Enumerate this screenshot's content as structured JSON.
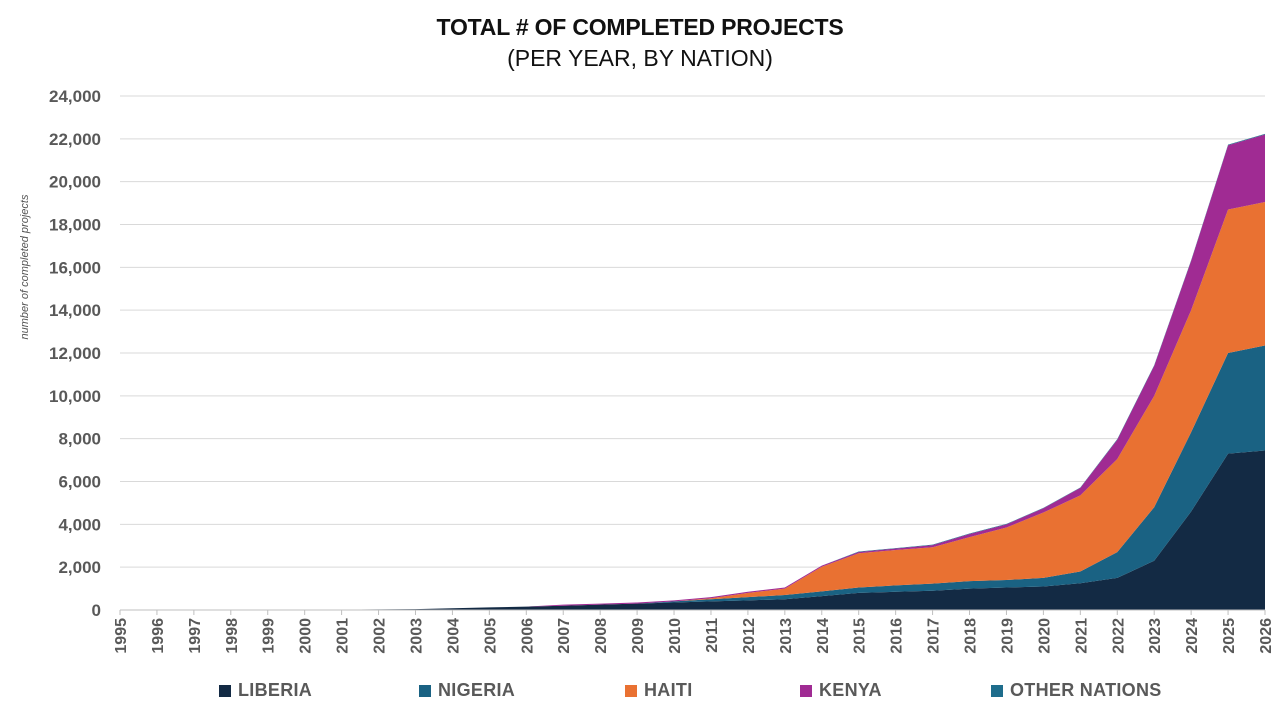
{
  "chart_data": {
    "type": "area",
    "stacked": true,
    "title": "TOTAL # OF COMPLETED PROJECTS",
    "subtitle": "(PER YEAR, BY NATION)",
    "xlabel": "",
    "ylabel": "number of completed projects",
    "ylim": [
      0,
      24000
    ],
    "yticks": [
      0,
      2000,
      4000,
      6000,
      8000,
      10000,
      12000,
      14000,
      16000,
      18000,
      20000,
      22000,
      24000
    ],
    "ytick_labels": [
      "0",
      "2,000",
      "4,000",
      "6,000",
      "8,000",
      "10,000",
      "12,000",
      "14,000",
      "16,000",
      "18,000",
      "20,000",
      "22,000",
      "24,000"
    ],
    "grid": true,
    "legend_position": "bottom",
    "categories": [
      "1995",
      "1996",
      "1997",
      "1998",
      "1999",
      "2000",
      "2001",
      "2002",
      "2003",
      "2004",
      "2005",
      "2006",
      "2007",
      "2008",
      "2009",
      "2010",
      "2011",
      "2012",
      "2013",
      "2014",
      "2015",
      "2016",
      "2017",
      "2018",
      "2019",
      "2020",
      "2021",
      "2022",
      "2023",
      "2024",
      "2025",
      "2026"
    ],
    "series": [
      {
        "name": "LIBERIA",
        "color": "#132a44",
        "values": [
          0,
          0,
          0,
          0,
          0,
          0,
          20,
          30,
          40,
          80,
          120,
          160,
          200,
          250,
          300,
          350,
          400,
          450,
          500,
          650,
          800,
          850,
          900,
          1000,
          1050,
          1100,
          1250,
          1500,
          2300,
          4600,
          7300,
          7450
        ]
      },
      {
        "name": "NIGERIA",
        "color": "#1a6283",
        "values": [
          0,
          0,
          0,
          0,
          0,
          0,
          0,
          0,
          0,
          0,
          0,
          0,
          0,
          0,
          0,
          50,
          100,
          150,
          200,
          220,
          250,
          300,
          330,
          350,
          350,
          400,
          550,
          1200,
          2500,
          3700,
          4700,
          4900
        ]
      },
      {
        "name": "HAITI",
        "color": "#e97132",
        "values": [
          0,
          0,
          0,
          0,
          0,
          0,
          0,
          0,
          0,
          0,
          0,
          0,
          0,
          0,
          0,
          0,
          50,
          200,
          300,
          1150,
          1600,
          1650,
          1700,
          2050,
          2450,
          3050,
          3550,
          4350,
          5200,
          5700,
          6700,
          6700
        ]
      },
      {
        "name": "KENYA",
        "color": "#a02b93",
        "values": [
          0,
          0,
          0,
          0,
          0,
          0,
          0,
          0,
          0,
          0,
          0,
          0,
          50,
          50,
          50,
          50,
          50,
          50,
          50,
          50,
          60,
          70,
          100,
          150,
          150,
          200,
          350,
          900,
          1400,
          2300,
          3000,
          3150
        ]
      },
      {
        "name": "OTHER NATIONS",
        "color": "#1e6d8c",
        "values": [
          0,
          0,
          0,
          0,
          0,
          0,
          0,
          0,
          0,
          0,
          0,
          0,
          0,
          0,
          0,
          0,
          0,
          0,
          0,
          0,
          20,
          20,
          20,
          20,
          20,
          20,
          20,
          30,
          30,
          30,
          30,
          30
        ]
      }
    ]
  }
}
